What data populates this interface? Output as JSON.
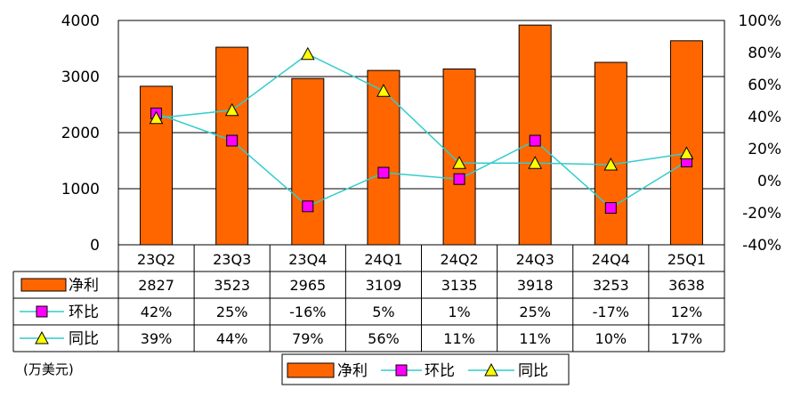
{
  "chart_data": {
    "type": "bar",
    "categories": [
      "23Q2",
      "23Q3",
      "23Q4",
      "24Q1",
      "24Q2",
      "24Q3",
      "24Q4",
      "25Q1"
    ],
    "series": [
      {
        "name": "净利",
        "type": "bar",
        "axis": "left",
        "color": "#ff6600",
        "values": [
          2827,
          3523,
          2965,
          3109,
          3135,
          3918,
          3253,
          3638
        ]
      },
      {
        "name": "环比",
        "type": "line",
        "axis": "right",
        "color": "#ff00ff",
        "marker": "square",
        "values": [
          42,
          25,
          -16,
          5,
          1,
          25,
          -17,
          12
        ]
      },
      {
        "name": "同比",
        "type": "line",
        "axis": "right",
        "color": "#ffff00",
        "marker": "triangle",
        "values": [
          39,
          44,
          79,
          56,
          11,
          11,
          10,
          17
        ]
      }
    ],
    "left_axis": {
      "ylim": [
        0,
        4000
      ],
      "ticks": [
        "0",
        "1000",
        "2000",
        "3000",
        "4000"
      ]
    },
    "right_axis": {
      "ylim": [
        -40,
        100
      ],
      "ticks": [
        "-40%",
        "-20%",
        "0%",
        "20%",
        "40%",
        "60%",
        "80%",
        "100%"
      ]
    },
    "line_color": "#33cccc",
    "grid": true,
    "legend_position": "bottom",
    "unit_label": "(万美元)",
    "table": {
      "rows": [
        {
          "label": "净利",
          "cells": [
            "2827",
            "3523",
            "2965",
            "3109",
            "3135",
            "3918",
            "3253",
            "3638"
          ]
        },
        {
          "label": "环比",
          "cells": [
            "42%",
            "25%",
            "-16%",
            "5%",
            "1%",
            "25%",
            "-17%",
            "12%"
          ]
        },
        {
          "label": "同比",
          "cells": [
            "39%",
            "44%",
            "79%",
            "56%",
            "11%",
            "11%",
            "10%",
            "17%"
          ]
        }
      ]
    },
    "legend": [
      "净利",
      "环比",
      "同比"
    ]
  }
}
